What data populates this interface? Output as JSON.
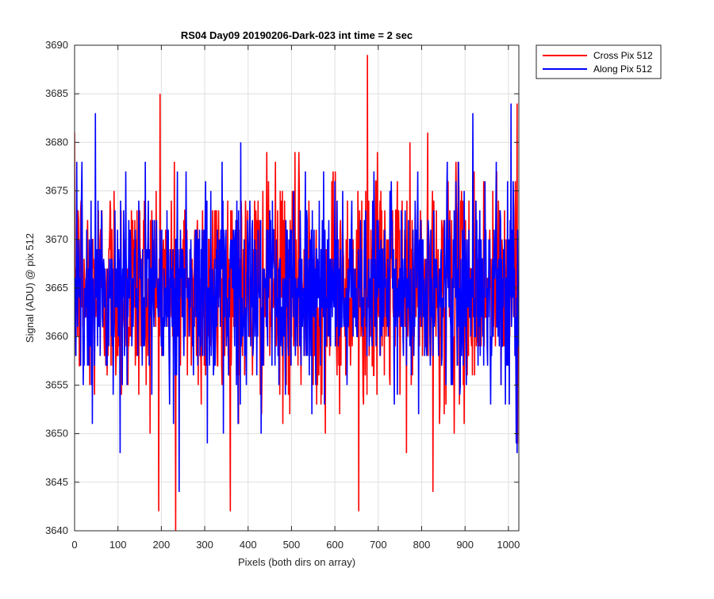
{
  "chart_data": {
    "type": "line",
    "title": "RS04 Day09 20190206-Dark-023 int time = 2 sec",
    "xlabel": "Pixels (both dirs on array)",
    "ylabel": "Signal (ADU) @ pix 512",
    "xlim": [
      0,
      1024
    ],
    "ylim": [
      3640,
      3690
    ],
    "xticks": [
      0,
      100,
      200,
      300,
      400,
      500,
      600,
      700,
      800,
      900,
      1000
    ],
    "yticks": [
      3640,
      3645,
      3650,
      3655,
      3660,
      3665,
      3670,
      3675,
      3680,
      3685,
      3690
    ],
    "grid": true,
    "legend_position": "outside-top-right",
    "series": [
      {
        "name": "Cross Pix 512",
        "color": "#ff0000",
        "mean": 3665,
        "std": 5.8,
        "min": 3640,
        "max": 3689,
        "samples": 1024,
        "extremes": [
          {
            "x": 197,
            "y": 3685
          },
          {
            "x": 233,
            "y": 3640
          },
          {
            "x": 655,
            "y": 3642
          },
          {
            "x": 675,
            "y": 3689
          },
          {
            "x": 826,
            "y": 3644
          },
          {
            "x": 1020,
            "y": 3684
          }
        ]
      },
      {
        "name": "Along Pix 512",
        "color": "#0000ff",
        "mean": 3665,
        "std": 5.2,
        "min": 3644,
        "max": 3684,
        "samples": 1024,
        "extremes": [
          {
            "x": 48,
            "y": 3683
          },
          {
            "x": 241,
            "y": 3644
          },
          {
            "x": 918,
            "y": 3683
          },
          {
            "x": 1006,
            "y": 3684
          },
          {
            "x": 1020,
            "y": 3648
          }
        ]
      }
    ]
  }
}
